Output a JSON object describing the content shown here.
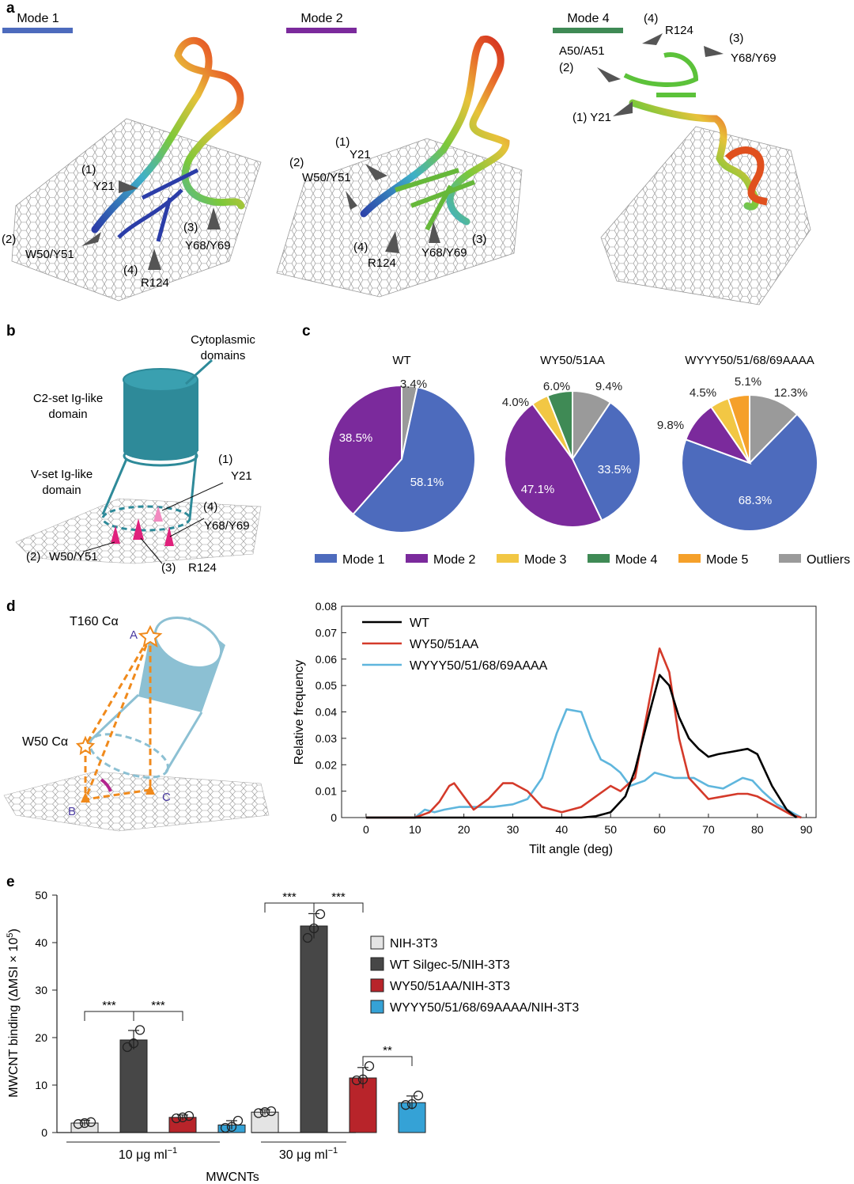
{
  "colors": {
    "mode1": "#4d6bbd",
    "mode2": "#7b2a9c",
    "mode3": "#f2c744",
    "mode4": "#3f8a55",
    "mode5": "#f5a02a",
    "outliers": "#9a9a9a",
    "wt_line": "#000000",
    "wy_line": "#d43a2a",
    "wyyy_line": "#5fb6dd",
    "bar_nih": "#e4e4e4",
    "bar_wt": "#474747",
    "bar_wy": "#b8242a",
    "bar_wyyy": "#35a2d6",
    "teal": "#2e8a99",
    "pink": "#e0217c"
  },
  "panel_a": {
    "letter": "a",
    "modes": [
      {
        "title": "Mode 1",
        "labels": [
          "(1)",
          "Y21",
          "(2)",
          "W50/Y51",
          "(3)",
          "Y68/Y69",
          "(4)",
          "R124"
        ]
      },
      {
        "title": "Mode 2",
        "labels": [
          "(1)",
          "Y21",
          "(2)",
          "W50/Y51",
          "(4)",
          "R124",
          "Y68/Y69",
          "(3)"
        ]
      },
      {
        "title": "Mode 4",
        "labels": [
          "(4)",
          "R124",
          "(3)",
          "Y68/Y69",
          "A50/A51",
          "(2)",
          "(1) Y21"
        ]
      }
    ]
  },
  "panel_b": {
    "letter": "b",
    "cytoplasmic": [
      "Cytoplasmic",
      "domains"
    ],
    "c2set": [
      "C2-set Ig-like",
      "domain"
    ],
    "vset": [
      "V-set Ig-like",
      "domain"
    ],
    "res1": "(1)",
    "res1_name": "Y21",
    "res4": "(4)",
    "res4_name": "Y68/Y69",
    "res2": "(2)",
    "res2_name": "W50/Y51",
    "res3": "(3)",
    "res3_name": "R124"
  },
  "panel_c": {
    "letter": "c",
    "chart_data": [
      {
        "type": "pie",
        "title": "WT",
        "slices": [
          {
            "label": "Mode 1",
            "value": 58.1,
            "text": "58.1%"
          },
          {
            "label": "Mode 2",
            "value": 38.5,
            "text": "38.5%"
          },
          {
            "label": "Outliers",
            "value": 3.4,
            "text": "3.4%"
          }
        ]
      },
      {
        "type": "pie",
        "title": "WY50/51AA",
        "slices": [
          {
            "label": "Mode 1",
            "value": 33.5,
            "text": "33.5%"
          },
          {
            "label": "Mode 2",
            "value": 47.1,
            "text": "47.1%"
          },
          {
            "label": "Mode 3",
            "value": 4.0,
            "text": "4.0%"
          },
          {
            "label": "Mode 4",
            "value": 6.0,
            "text": "6.0%"
          },
          {
            "label": "Outliers",
            "value": 9.4,
            "text": "9.4%"
          }
        ]
      },
      {
        "type": "pie",
        "title": "WYYY50/51/68/69AAAA",
        "slices": [
          {
            "label": "Mode 1",
            "value": 68.3,
            "text": "68.3%"
          },
          {
            "label": "Mode 2",
            "value": 9.8,
            "text": "9.8%"
          },
          {
            "label": "Mode 3",
            "value": 4.5,
            "text": "4.5%"
          },
          {
            "label": "Mode 5",
            "value": 5.1,
            "text": "5.1%"
          },
          {
            "label": "Outliers",
            "value": 12.3,
            "text": "12.3%"
          }
        ]
      }
    ],
    "legend": [
      "Mode 1",
      "Mode 2",
      "Mode 3",
      "Mode 4",
      "Mode 5",
      "Outliers"
    ]
  },
  "panel_d": {
    "letter": "d",
    "t160": "T160 Cα",
    "w50": "W50 Cα",
    "pointA": "A",
    "pointB": "B",
    "pointC": "C",
    "chart_data": {
      "type": "line",
      "xlabel": "Tilt angle (deg)",
      "ylabel": "Relative frequency",
      "xlim": [
        -5,
        92
      ],
      "ylim": [
        0,
        0.08
      ],
      "xticks": [
        "0",
        "10",
        "20",
        "30",
        "40",
        "50",
        "60",
        "70",
        "80",
        "90"
      ],
      "yticks": [
        "0",
        "0.01",
        "0.02",
        "0.03",
        "0.04",
        "0.05",
        "0.06",
        "0.07",
        "0.08"
      ],
      "series": [
        {
          "name": "WT",
          "x": [
            0,
            44,
            47,
            50,
            53,
            55,
            58,
            60,
            62,
            64,
            66,
            68,
            70,
            72,
            75,
            78,
            80,
            83,
            86,
            88
          ],
          "y": [
            0,
            0,
            0.0005,
            0.002,
            0.008,
            0.018,
            0.04,
            0.054,
            0.05,
            0.038,
            0.03,
            0.026,
            0.023,
            0.024,
            0.025,
            0.026,
            0.024,
            0.012,
            0.003,
            0
          ]
        },
        {
          "name": "WY50/51AA",
          "x": [
            0,
            10,
            13,
            15,
            17,
            18,
            20,
            22,
            25,
            28,
            30,
            33,
            36,
            40,
            44,
            47,
            50,
            52,
            55,
            58,
            60,
            62,
            64,
            66,
            70,
            73,
            76,
            78,
            80,
            84,
            87,
            89
          ],
          "y": [
            0,
            0,
            0.002,
            0.006,
            0.012,
            0.013,
            0.008,
            0.003,
            0.007,
            0.013,
            0.013,
            0.01,
            0.004,
            0.002,
            0.004,
            0.008,
            0.012,
            0.01,
            0.015,
            0.045,
            0.064,
            0.055,
            0.03,
            0.015,
            0.007,
            0.008,
            0.009,
            0.009,
            0.008,
            0.004,
            0.001,
            0
          ]
        },
        {
          "name": "WYYY50/51/68/69AAAA",
          "x": [
            0,
            10,
            12,
            14,
            16,
            19,
            22,
            26,
            30,
            33,
            36,
            39,
            41,
            44,
            46,
            48,
            50,
            52,
            54,
            57,
            59,
            61,
            63,
            65,
            67,
            70,
            73,
            75,
            77,
            79,
            81,
            84,
            87,
            89
          ],
          "y": [
            0,
            0,
            0.003,
            0.002,
            0.003,
            0.004,
            0.004,
            0.004,
            0.005,
            0.007,
            0.015,
            0.032,
            0.041,
            0.04,
            0.03,
            0.022,
            0.02,
            0.017,
            0.012,
            0.014,
            0.017,
            0.016,
            0.015,
            0.015,
            0.015,
            0.012,
            0.011,
            0.013,
            0.015,
            0.014,
            0.01,
            0.005,
            0.002,
            0
          ]
        }
      ]
    }
  },
  "panel_e": {
    "letter": "e",
    "chart_data": {
      "type": "bar",
      "ylabel": "MWCNT binding (ΔMSI × 10",
      "ylabel_sup": "5",
      "ylabel_close": ")",
      "xlabel": "MWCNTs",
      "ylim": [
        0,
        50
      ],
      "yticks": [
        "0",
        "10",
        "20",
        "30",
        "40",
        "50"
      ],
      "groups": [
        {
          "label": "10 μg ml",
          "sup": "−1"
        },
        {
          "label": "30 μg ml",
          "sup": "−1"
        }
      ],
      "series": [
        {
          "name": "NIH-3T3",
          "values": [
            2.0,
            4.3
          ],
          "err": [
            0.6,
            0.5
          ],
          "points": [
            [
              1.8,
              2.0,
              2.2
            ],
            [
              4.1,
              4.3,
              4.5
            ]
          ]
        },
        {
          "name": "WT Silgec-5/NIH-3T3",
          "values": [
            19.5,
            43.5
          ],
          "err": [
            2.0,
            2.6
          ],
          "points": [
            [
              18.0,
              18.8,
              21.6
            ],
            [
              41.0,
              43.0,
              46.0
            ]
          ]
        },
        {
          "name": "WY50/51AA/NIH-3T3",
          "values": [
            3.2,
            11.5
          ],
          "err": [
            0.5,
            2.2
          ],
          "points": [
            [
              3.0,
              3.2,
              3.5
            ],
            [
              11.0,
              11.2,
              14.0
            ]
          ]
        },
        {
          "name": "WYYY50/51/68/69AAAA/NIH-3T3",
          "values": [
            1.6,
            6.3
          ],
          "err": [
            0.9,
            1.4
          ],
          "points": [
            [
              1.0,
              1.2,
              2.5
            ],
            [
              5.8,
              6.0,
              7.8
            ]
          ]
        }
      ],
      "significance": [
        "***",
        "***",
        "***",
        "***",
        "**"
      ]
    }
  }
}
